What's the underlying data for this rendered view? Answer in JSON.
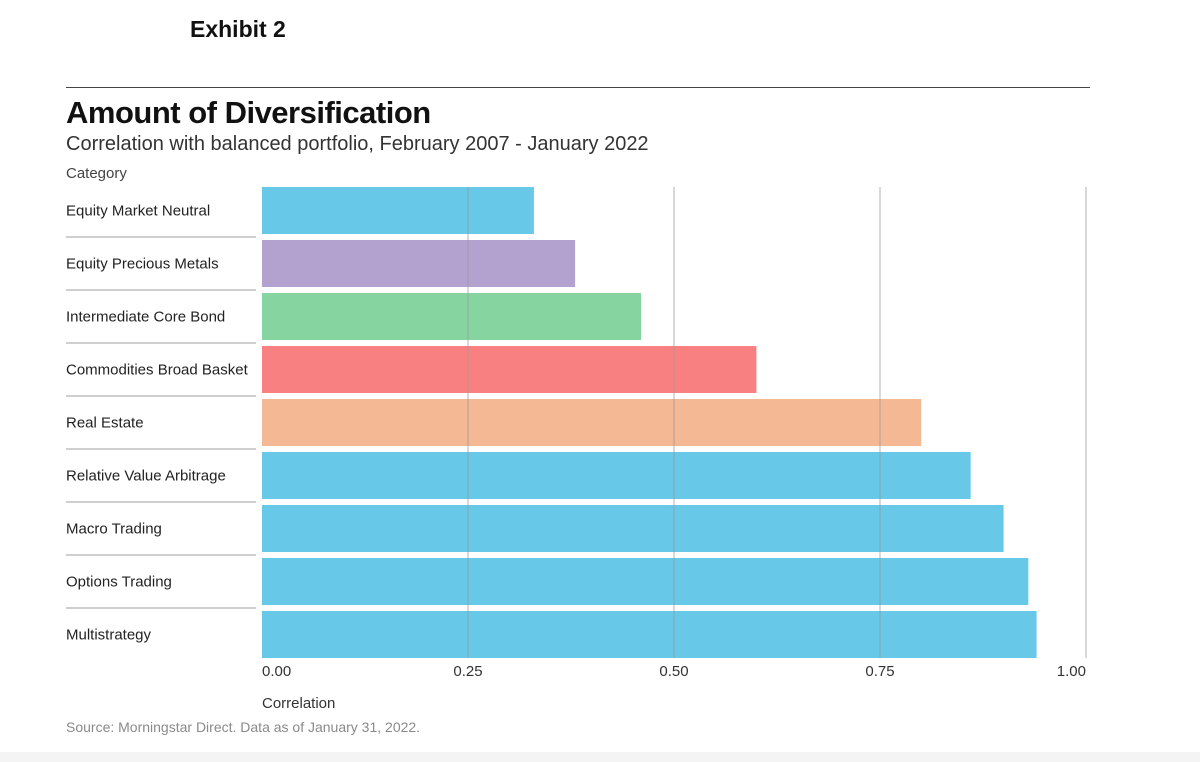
{
  "header": {
    "exhibit": "Exhibit 2",
    "title": "Amount of Diversification",
    "subtitle": "Correlation with balanced portfolio, February 2007 - January 2022",
    "category_label": "Category"
  },
  "footer": {
    "source": "Source: Morningstar Direct. Data as of January 31, 2022."
  },
  "chart_data": {
    "type": "bar",
    "orientation": "horizontal",
    "title": "Amount of Diversification",
    "subtitle": "Correlation with balanced portfolio, February 2007 - January 2022",
    "xlabel": "Correlation",
    "ylabel": "Category",
    "xlim": [
      0,
      1
    ],
    "xticks": [
      "0.00",
      "0.25",
      "0.50",
      "0.75",
      "1.00"
    ],
    "xtick_values": [
      0,
      0.25,
      0.5,
      0.75,
      1.0
    ],
    "grid": true,
    "categories": [
      "Equity Market Neutral",
      "Equity Precious Metals",
      "Intermediate Core Bond",
      "Commodities Broad Basket",
      "Real Estate",
      "Relative Value Arbitrage",
      "Macro Trading",
      "Options Trading",
      "Multistrategy"
    ],
    "values": [
      0.33,
      0.38,
      0.46,
      0.6,
      0.8,
      0.86,
      0.9,
      0.93,
      0.94
    ],
    "colors": [
      "#67c8e8",
      "#b3a2cf",
      "#86d5a0",
      "#f98080",
      "#f4b895",
      "#67c8e8",
      "#67c8e8",
      "#67c8e8",
      "#67c8e8"
    ]
  }
}
